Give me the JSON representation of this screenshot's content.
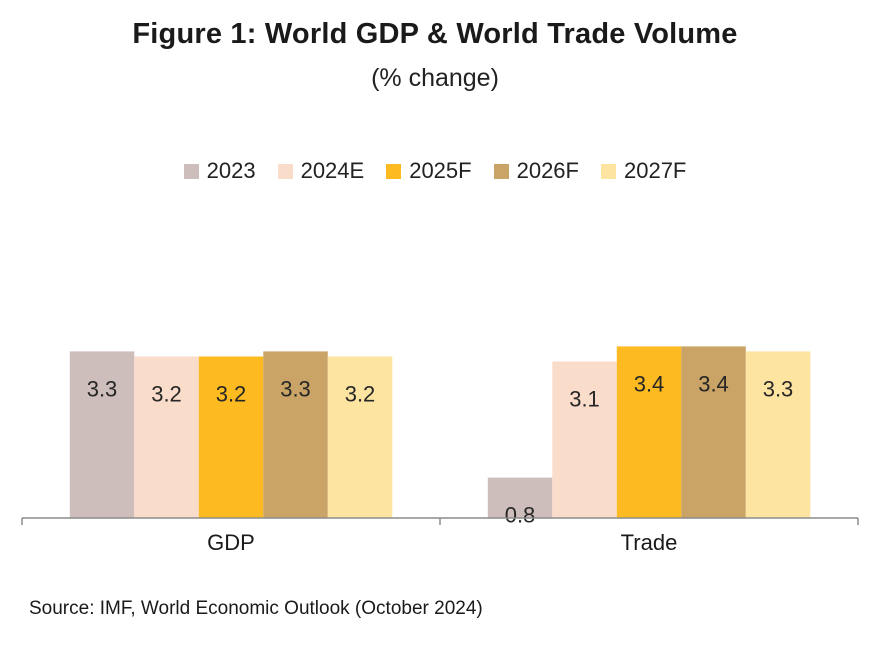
{
  "title": "Figure 1:  World GDP & World Trade Volume",
  "subtitle": "(% change)",
  "source": "Source: IMF, World Economic Outlook (October 2024)",
  "chart_data": {
    "type": "bar",
    "categories": [
      "GDP",
      "Trade"
    ],
    "series": [
      {
        "name": "2023",
        "values": [
          3.3,
          0.8
        ],
        "color": "#CDBDBB"
      },
      {
        "name": "2024E",
        "values": [
          3.2,
          3.1
        ],
        "color": "#FADCCB"
      },
      {
        "name": "2025F",
        "values": [
          3.2,
          3.4
        ],
        "color": "#FDBA21"
      },
      {
        "name": "2026F",
        "values": [
          3.3,
          3.4
        ],
        "color": "#C9A466"
      },
      {
        "name": "2027F",
        "values": [
          3.2,
          3.3
        ],
        "color": "#FDE4A1"
      }
    ],
    "data_labels": [
      [
        "3.3",
        "3.2",
        "3.2",
        "3.3",
        "3.2"
      ],
      [
        "0.8",
        "3.1",
        "3.4",
        "3.4",
        "3.3"
      ]
    ],
    "ylim": [
      0,
      6.3
    ],
    "grid": false,
    "legend_position": "top"
  }
}
